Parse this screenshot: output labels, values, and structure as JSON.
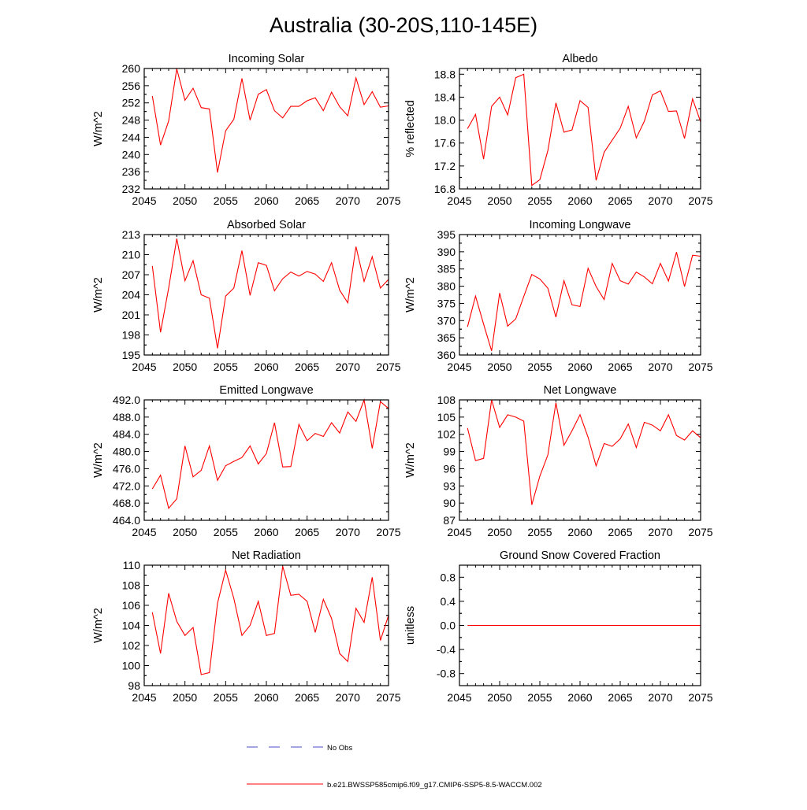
{
  "figure": {
    "title": "Australia (30-20S,110-145E)",
    "x_tick_labels": [
      "2045",
      "2050",
      "2055",
      "2060",
      "2065",
      "2070",
      "2075"
    ],
    "legend": {
      "obs_label": "No Obs",
      "model_label": "b.e21.BWSSP585cmip6.f09_g17.CMIP6-SSP5-8.5-WACCM.002",
      "model_color": "#ff0000",
      "obs_color": "#4b4bcc"
    }
  },
  "chart_data": [
    {
      "type": "line",
      "title": "Incoming Solar",
      "ylabel": "W/m^2",
      "xlim": [
        2045,
        2075
      ],
      "ylim": [
        232,
        260
      ],
      "yticks": [
        "232",
        "236",
        "240",
        "244",
        "248",
        "252",
        "256",
        "260"
      ],
      "series": [
        {
          "name": "b.e21.BWSSP585cmip6.f09_g17.CMIP6-SSP5-8.5-WACCM.002",
          "x": [
            2046,
            2047,
            2048,
            2049,
            2050,
            2051,
            2052,
            2053,
            2054,
            2055,
            2056,
            2057,
            2058,
            2059,
            2060,
            2061,
            2062,
            2063,
            2064,
            2065,
            2066,
            2067,
            2068,
            2069,
            2070,
            2071,
            2072,
            2073,
            2074,
            2075
          ],
          "values": [
            253.6,
            242.2,
            247.8,
            259.9,
            252.6,
            255.4,
            250.9,
            250.6,
            235.8,
            245.5,
            248.2,
            257.7,
            248.0,
            254.0,
            255.1,
            250.2,
            248.5,
            251.2,
            251.2,
            252.5,
            253.2,
            250.2,
            254.5,
            251.1,
            249.0,
            257.8,
            251.6,
            254.6,
            251.0,
            251.3
          ]
        }
      ]
    },
    {
      "type": "line",
      "title": "Albedo",
      "ylabel": "% reflected",
      "xlim": [
        2045,
        2075
      ],
      "ylim": [
        16.8,
        18.9
      ],
      "yticks": [
        "16.8",
        "17.2",
        "17.6",
        "18.0",
        "18.4",
        "18.8"
      ],
      "series": [
        {
          "name": "b.e21.BWSSP585cmip6.f09_g17.CMIP6-SSP5-8.5-WACCM.002",
          "x": [
            2046,
            2047,
            2048,
            2049,
            2050,
            2051,
            2052,
            2053,
            2054,
            2055,
            2056,
            2057,
            2058,
            2059,
            2060,
            2061,
            2062,
            2063,
            2064,
            2065,
            2066,
            2067,
            2068,
            2069,
            2070,
            2071,
            2072,
            2073,
            2074,
            2075
          ],
          "values": [
            17.85,
            18.1,
            17.32,
            18.24,
            18.4,
            18.09,
            18.74,
            18.8,
            16.86,
            16.96,
            17.47,
            18.3,
            17.79,
            17.83,
            18.34,
            18.22,
            16.95,
            17.44,
            17.65,
            17.86,
            18.24,
            17.69,
            17.98,
            18.44,
            18.51,
            18.15,
            18.16,
            17.68,
            18.37,
            17.97
          ]
        }
      ]
    },
    {
      "type": "line",
      "title": "Absorbed Solar",
      "ylabel": "W/m^2",
      "xlim": [
        2045,
        2075
      ],
      "ylim": [
        195,
        213
      ],
      "yticks": [
        "195",
        "198",
        "201",
        "204",
        "207",
        "210",
        "213"
      ],
      "series": [
        {
          "name": "b.e21.BWSSP585cmip6.f09_g17.CMIP6-SSP5-8.5-WACCM.002",
          "x": [
            2046,
            2047,
            2048,
            2049,
            2050,
            2051,
            2052,
            2053,
            2054,
            2055,
            2056,
            2057,
            2058,
            2059,
            2060,
            2061,
            2062,
            2063,
            2064,
            2065,
            2066,
            2067,
            2068,
            2069,
            2070,
            2071,
            2072,
            2073,
            2074,
            2075
          ],
          "values": [
            208.3,
            198.4,
            205.0,
            212.4,
            206.1,
            209.1,
            204.0,
            203.5,
            196.0,
            203.8,
            205.0,
            210.6,
            203.9,
            208.8,
            208.4,
            204.6,
            206.4,
            207.4,
            206.8,
            207.5,
            207.1,
            206.0,
            208.8,
            204.7,
            202.8,
            211.2,
            206.0,
            209.7,
            205.0,
            206.3
          ]
        }
      ]
    },
    {
      "type": "line",
      "title": "Incoming Longwave",
      "ylabel": "W/m^2",
      "xlim": [
        2045,
        2075
      ],
      "ylim": [
        360,
        395
      ],
      "yticks": [
        "360",
        "365",
        "370",
        "375",
        "380",
        "385",
        "390",
        "395"
      ],
      "series": [
        {
          "name": "b.e21.BWSSP585cmip6.f09_g17.CMIP6-SSP5-8.5-WACCM.002",
          "x": [
            2046,
            2047,
            2048,
            2049,
            2050,
            2051,
            2052,
            2053,
            2054,
            2055,
            2056,
            2057,
            2058,
            2059,
            2060,
            2061,
            2062,
            2063,
            2064,
            2065,
            2066,
            2067,
            2068,
            2069,
            2070,
            2071,
            2072,
            2073,
            2074,
            2075
          ],
          "values": [
            368.2,
            377.1,
            369.0,
            361.2,
            378.0,
            368.4,
            370.5,
            377.0,
            383.4,
            382.1,
            379.4,
            371.0,
            381.6,
            374.6,
            374.1,
            385.2,
            379.9,
            376.1,
            386.6,
            381.6,
            380.6,
            384.1,
            382.7,
            380.7,
            386.6,
            381.5,
            389.9,
            379.9,
            389.0,
            388.7
          ]
        }
      ]
    },
    {
      "type": "line",
      "title": "Emitted Longwave",
      "ylabel": "W/m^2",
      "xlim": [
        2045,
        2075
      ],
      "ylim": [
        464,
        492
      ],
      "yticks": [
        "464.0",
        "468.0",
        "472.0",
        "476.0",
        "480.0",
        "484.0",
        "488.0",
        "492.0"
      ],
      "series": [
        {
          "name": "b.e21.BWSSP585cmip6.f09_g17.CMIP6-SSP5-8.5-WACCM.002",
          "x": [
            2046,
            2047,
            2048,
            2049,
            2050,
            2051,
            2052,
            2053,
            2054,
            2055,
            2056,
            2057,
            2058,
            2059,
            2060,
            2061,
            2062,
            2063,
            2064,
            2065,
            2066,
            2067,
            2068,
            2069,
            2070,
            2071,
            2072,
            2073,
            2074,
            2075
          ],
          "values": [
            471.3,
            474.5,
            466.8,
            469.0,
            481.3,
            474.1,
            475.6,
            481.3,
            473.3,
            476.7,
            477.7,
            478.6,
            481.3,
            477.1,
            479.5,
            486.7,
            476.4,
            476.5,
            486.3,
            482.5,
            484.2,
            483.5,
            486.7,
            484.3,
            489.2,
            487.0,
            492.0,
            480.7,
            491.6,
            490.0
          ]
        }
      ]
    },
    {
      "type": "line",
      "title": "Net Longwave",
      "ylabel": "W/m^2",
      "xlim": [
        2045,
        2075
      ],
      "ylim": [
        87,
        108
      ],
      "yticks": [
        "87",
        "90",
        "93",
        "96",
        "99",
        "102",
        "105",
        "108"
      ],
      "series": [
        {
          "name": "b.e21.BWSSP585cmip6.f09_g17.CMIP6-SSP5-8.5-WACCM.002",
          "x": [
            2046,
            2047,
            2048,
            2049,
            2050,
            2051,
            2052,
            2053,
            2054,
            2055,
            2056,
            2057,
            2058,
            2059,
            2060,
            2061,
            2062,
            2063,
            2064,
            2065,
            2066,
            2067,
            2068,
            2069,
            2070,
            2071,
            2072,
            2073,
            2074,
            2075
          ],
          "values": [
            103.1,
            97.4,
            97.8,
            108.0,
            103.2,
            105.4,
            105.0,
            104.3,
            89.7,
            94.7,
            98.4,
            107.5,
            100.1,
            102.6,
            105.4,
            101.5,
            96.5,
            100.4,
            99.9,
            101.2,
            103.8,
            99.7,
            104.1,
            103.6,
            102.6,
            105.4,
            101.8,
            101.0,
            102.6,
            101.4
          ]
        }
      ]
    },
    {
      "type": "line",
      "title": "Net Radiation",
      "ylabel": "W/m^2",
      "xlim": [
        2045,
        2075
      ],
      "ylim": [
        98,
        110
      ],
      "yticks": [
        "98",
        "100",
        "102",
        "104",
        "106",
        "108",
        "110"
      ],
      "series": [
        {
          "name": "b.e21.BWSSP585cmip6.f09_g17.CMIP6-SSP5-8.5-WACCM.002",
          "x": [
            2046,
            2047,
            2048,
            2049,
            2050,
            2051,
            2052,
            2053,
            2054,
            2055,
            2056,
            2057,
            2058,
            2059,
            2060,
            2061,
            2062,
            2063,
            2064,
            2065,
            2066,
            2067,
            2068,
            2069,
            2070,
            2071,
            2072,
            2073,
            2074,
            2075
          ],
          "values": [
            105.3,
            101.2,
            107.2,
            104.4,
            103.0,
            103.8,
            99.1,
            99.3,
            106.2,
            109.5,
            106.7,
            103.0,
            104.0,
            106.4,
            103.0,
            103.2,
            109.9,
            107.0,
            107.1,
            106.4,
            103.3,
            106.6,
            104.7,
            101.2,
            100.4,
            105.7,
            104.3,
            108.8,
            102.5,
            105.0
          ]
        }
      ]
    },
    {
      "type": "line",
      "title": "Ground Snow Covered Fraction",
      "ylabel": "unitless",
      "xlim": [
        2045,
        2075
      ],
      "ylim": [
        -1.0,
        1.0
      ],
      "yticks": [
        "-0.8",
        "-0.4",
        "0.0",
        "0.4",
        "0.8"
      ],
      "ytick_values": [
        -0.8,
        -0.4,
        0.0,
        0.4,
        0.8
      ],
      "series": [
        {
          "name": "b.e21.BWSSP585cmip6.f09_g17.CMIP6-SSP5-8.5-WACCM.002",
          "x": [
            2046,
            2047,
            2048,
            2049,
            2050,
            2051,
            2052,
            2053,
            2054,
            2055,
            2056,
            2057,
            2058,
            2059,
            2060,
            2061,
            2062,
            2063,
            2064,
            2065,
            2066,
            2067,
            2068,
            2069,
            2070,
            2071,
            2072,
            2073,
            2074,
            2075
          ],
          "values": [
            0,
            0,
            0,
            0,
            0,
            0,
            0,
            0,
            0,
            0,
            0,
            0,
            0,
            0,
            0,
            0,
            0,
            0,
            0,
            0,
            0,
            0,
            0,
            0,
            0,
            0,
            0,
            0,
            0,
            0
          ]
        }
      ]
    }
  ]
}
